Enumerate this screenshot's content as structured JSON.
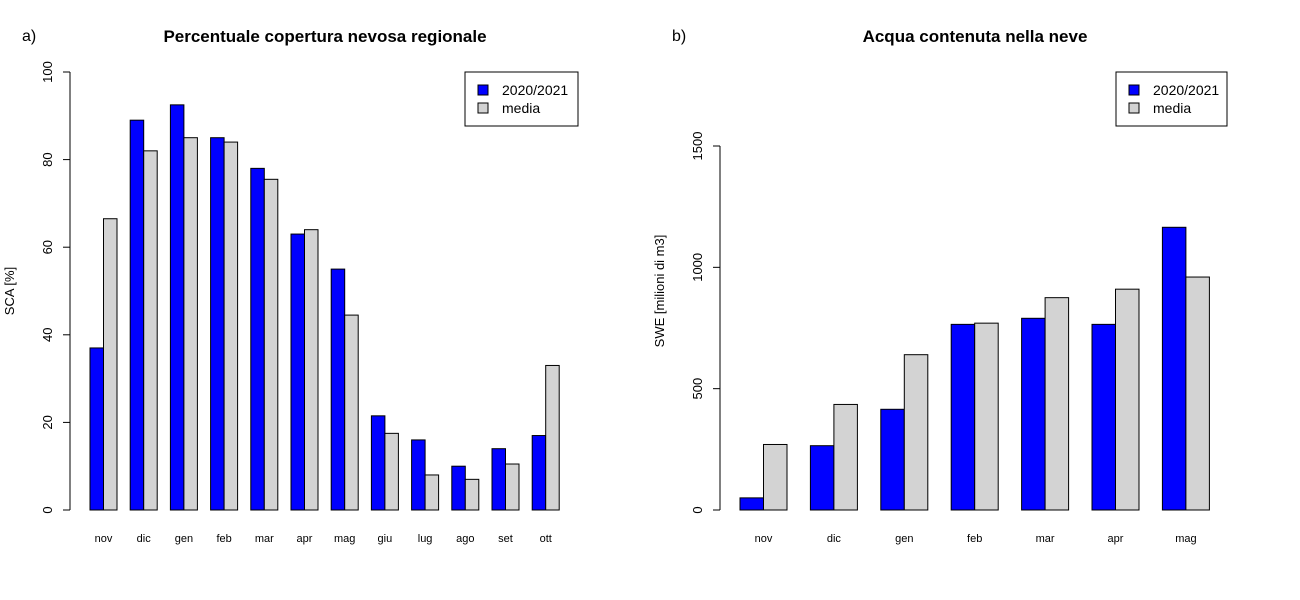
{
  "chart_data": [
    {
      "type": "bar",
      "panel_label": "a)",
      "title": "Percentuale copertura nevosa regionale",
      "xlabel": "",
      "ylabel": "SCA [%]",
      "ylim": [
        0,
        100
      ],
      "yticks": [
        0,
        20,
        40,
        60,
        80,
        100
      ],
      "categories": [
        "nov",
        "dic",
        "gen",
        "feb",
        "mar",
        "apr",
        "mag",
        "giu",
        "lug",
        "ago",
        "set",
        "ott"
      ],
      "series": [
        {
          "name": "2020/2021",
          "color": "#0000ff",
          "values": [
            37,
            89,
            92.5,
            85,
            78,
            63,
            55,
            21.5,
            16,
            10,
            14,
            17
          ]
        },
        {
          "name": "media",
          "color": "#d3d3d3",
          "values": [
            66.5,
            82,
            85,
            84,
            75.5,
            64,
            44.5,
            17.5,
            8,
            7,
            10.5,
            33
          ]
        }
      ],
      "legend": "top-right"
    },
    {
      "type": "bar",
      "panel_label": "b)",
      "title": "Acqua contenuta nella neve",
      "xlabel": "",
      "ylabel": "SWE [milioni di m3]",
      "ylim": [
        0,
        1500
      ],
      "yticks": [
        0,
        500,
        1000,
        1500
      ],
      "categories": [
        "nov",
        "dic",
        "gen",
        "feb",
        "mar",
        "apr",
        "mag"
      ],
      "series": [
        {
          "name": "2020/2021",
          "color": "#0000ff",
          "values": [
            50,
            265,
            415,
            765,
            790,
            765,
            1165
          ]
        },
        {
          "name": "media",
          "color": "#d3d3d3",
          "values": [
            270,
            435,
            640,
            770,
            875,
            910,
            960
          ]
        }
      ],
      "legend": "top-right"
    }
  ]
}
